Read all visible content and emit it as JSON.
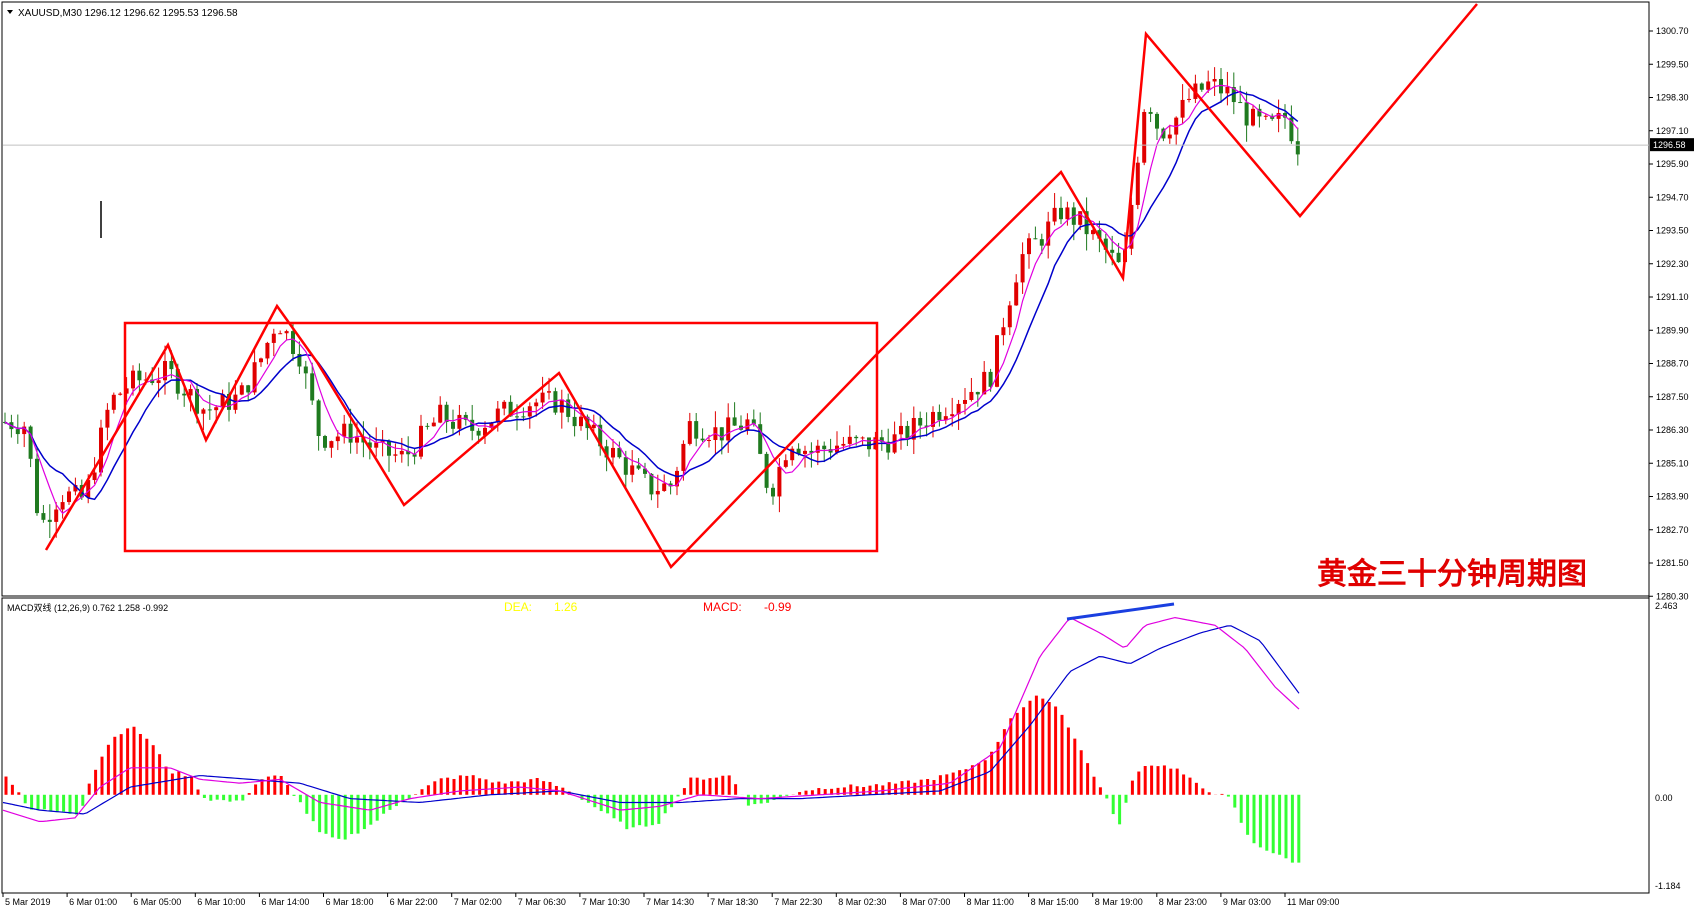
{
  "header": {
    "symbol_line": "XAUUSD,M30  1296.12 1296.62 1295.53 1296.58",
    "menu_arrow": "triangle-down-icon"
  },
  "price_axis": {
    "labels": [
      "1300.70",
      "1299.50",
      "1298.30",
      "1297.10",
      "1295.90",
      "1294.70",
      "1293.50",
      "1292.30",
      "1291.10",
      "1289.90",
      "1288.70",
      "1287.50",
      "1286.30",
      "1285.10",
      "1283.90",
      "1282.70",
      "1281.50",
      "1280.30"
    ],
    "current": "1296.58",
    "range": [
      1280.3,
      1301.3
    ]
  },
  "time_axis": {
    "labels": [
      "5 Mar 2019",
      "6 Mar 01:00",
      "6 Mar 05:00",
      "6 Mar 10:00",
      "6 Mar 14:00",
      "6 Mar 18:00",
      "6 Mar 22:00",
      "7 Mar 02:00",
      "7 Mar 06:30",
      "7 Mar 10:30",
      "7 Mar 14:30",
      "7 Mar 18:30",
      "7 Mar 22:30",
      "8 Mar 02:30",
      "8 Mar 07:00",
      "8 Mar 11:00",
      "8 Mar 15:00",
      "8 Mar 19:00",
      "8 Mar 23:00",
      "9 Mar 03:00",
      "11 Mar 09:00"
    ]
  },
  "macd": {
    "title": "MACD双线 (12,26,9) 0.762 1.258 -0.992",
    "dea_label": "DEA:",
    "dea_value": "1.26",
    "macd_label": "MACD:",
    "macd_value": "-0.99",
    "axis_labels": [
      "2.463",
      "0.00",
      "-1.184"
    ],
    "range": [
      -1.184,
      2.463
    ]
  },
  "overlay_title": "黄金三十分钟周期图",
  "colors": {
    "bull": "#e00000",
    "bear": "#1f7a1f",
    "ma_fast": "#e000e0",
    "ma_slow": "#0000cc",
    "annotation": "#ff0000",
    "hist_up": "#ff0000",
    "hist_down": "#33ff33",
    "dea_text": "#ffff00"
  }
}
